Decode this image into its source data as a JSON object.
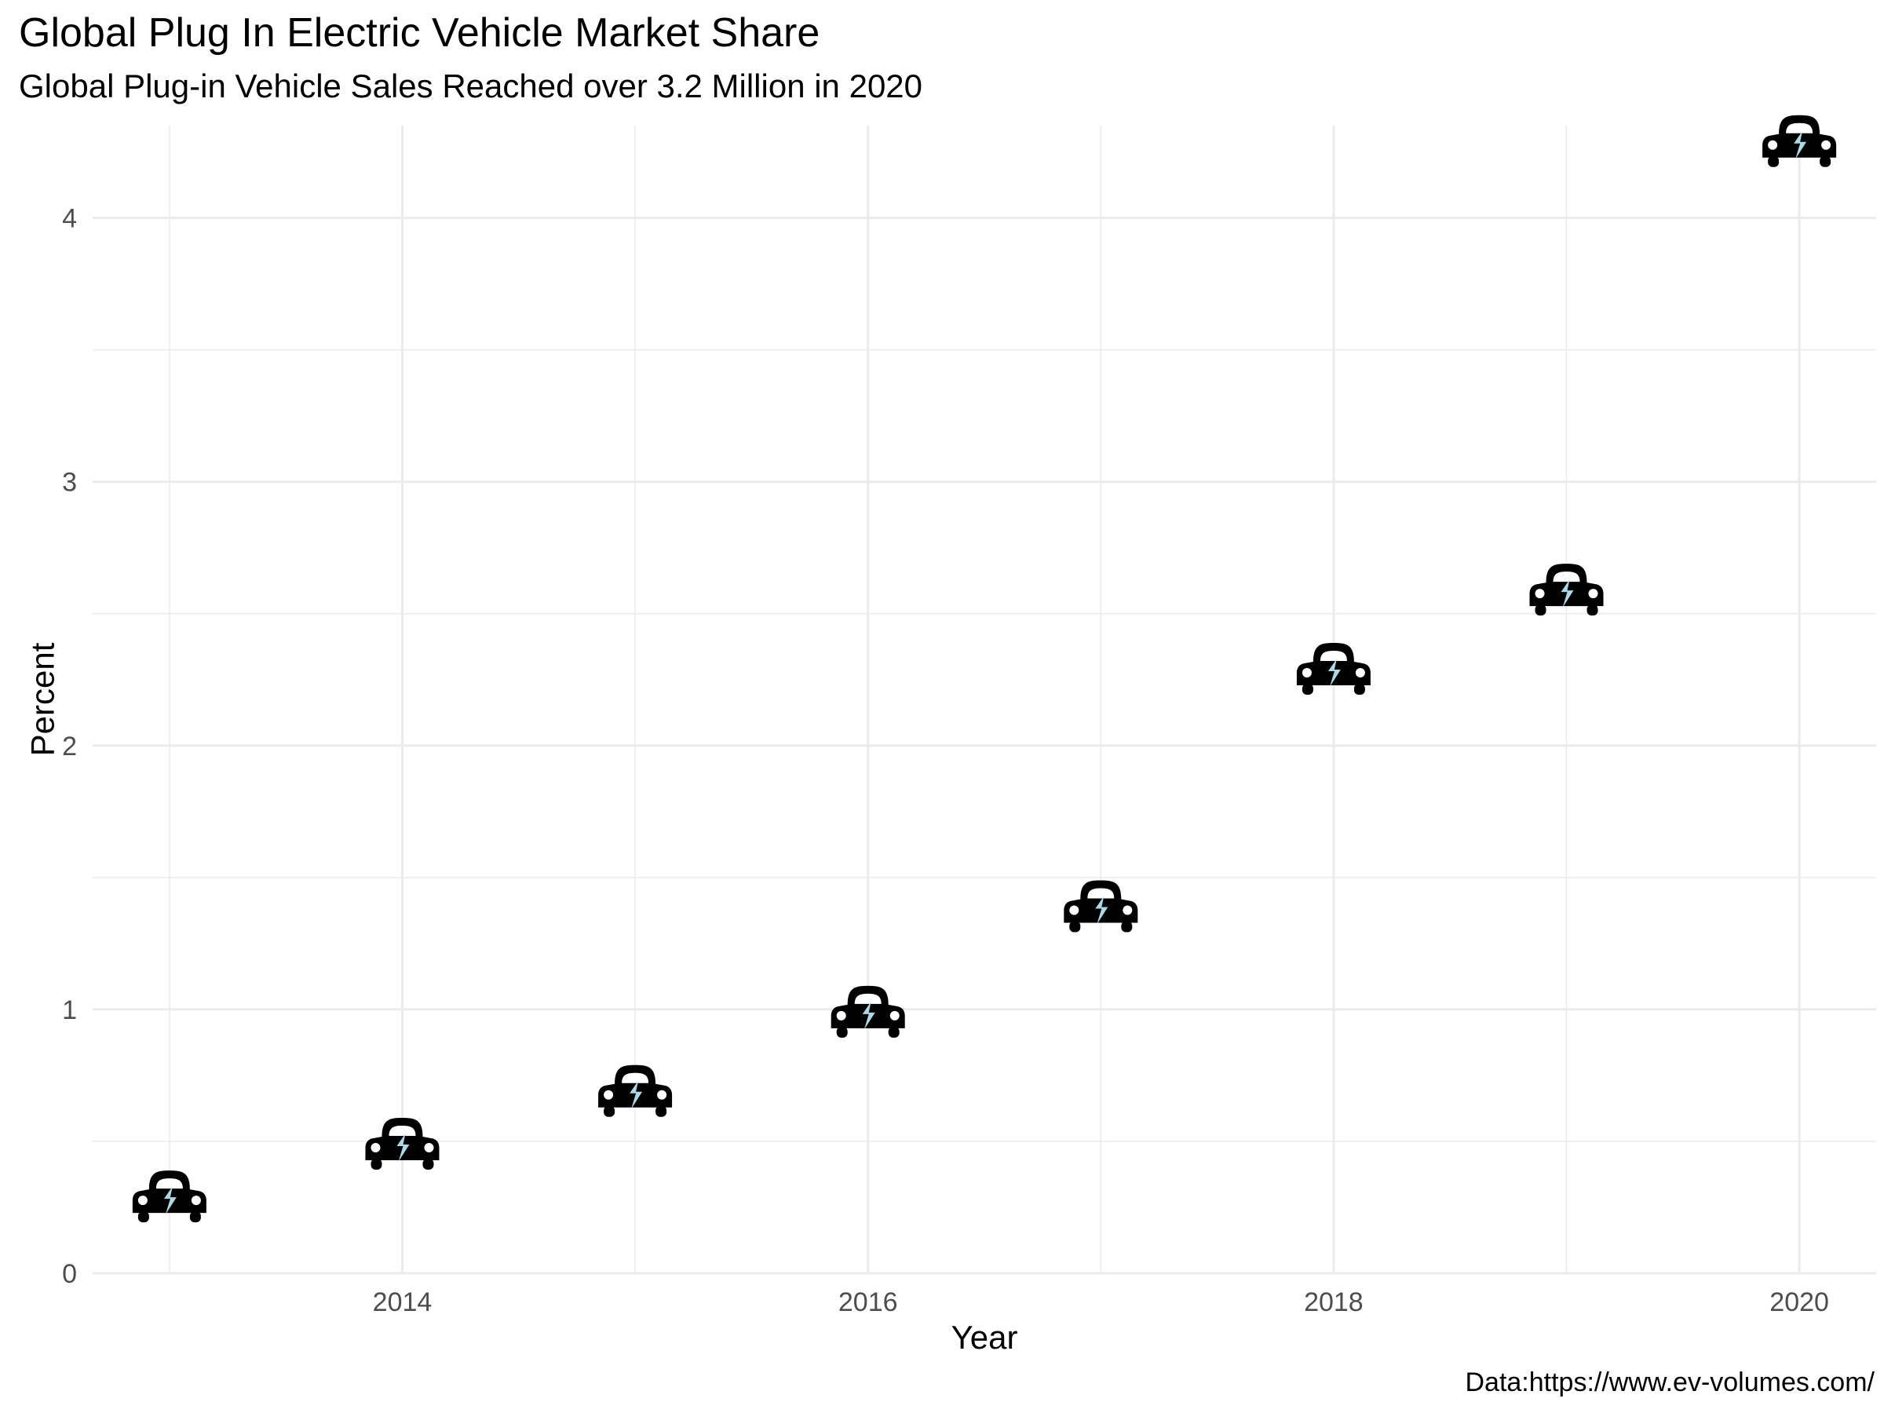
{
  "chart_data": {
    "type": "scatter",
    "title": "Global Plug In Electric Vehicle Market Share",
    "subtitle": "Global Plug-in Vehicle Sales Reached over 3.2 Million in 2020",
    "caption": "Data:https://www.ev-volumes.com/",
    "xlabel": "Year",
    "ylabel": "Percent",
    "x": [
      2013,
      2014,
      2015,
      2016,
      2017,
      2018,
      2019,
      2020
    ],
    "y": [
      0.3,
      0.5,
      0.7,
      1.0,
      1.4,
      2.3,
      2.6,
      4.3
    ],
    "xlim": [
      2012.67,
      2020.33
    ],
    "ylim": [
      0,
      4.35
    ],
    "x_ticks": [
      2014,
      2016,
      2018,
      2020
    ],
    "x_tick_labels": [
      "2014",
      "2016",
      "2018",
      "2020"
    ],
    "y_ticks": [
      0,
      1,
      2,
      3,
      4
    ],
    "y_tick_labels": [
      "0",
      "1",
      "2",
      "3",
      "4"
    ],
    "marker": "electric-car-icon",
    "marker_body_color": "#000000",
    "marker_bolt_color": "#add8e6",
    "grid": true,
    "grid_color": "#ebebeb",
    "legend": "none"
  }
}
